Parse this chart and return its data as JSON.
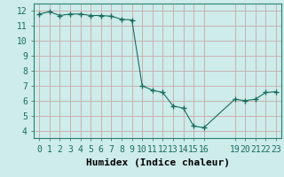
{
  "x": [
    0,
    1,
    2,
    3,
    4,
    5,
    6,
    7,
    8,
    9,
    10,
    11,
    12,
    13,
    14,
    15,
    16,
    19,
    20,
    21,
    22,
    23
  ],
  "y": [
    11.8,
    11.95,
    11.7,
    11.8,
    11.8,
    11.7,
    11.7,
    11.65,
    11.45,
    11.4,
    7.0,
    6.7,
    6.55,
    5.65,
    5.5,
    4.3,
    4.2,
    6.1,
    6.0,
    6.1,
    6.55,
    6.6
  ],
  "title": "",
  "xlabel": "Humidex (Indice chaleur)",
  "ylabel": "",
  "xlim": [
    -0.5,
    23.5
  ],
  "ylim": [
    3.5,
    12.5
  ],
  "xticks": [
    0,
    1,
    2,
    3,
    4,
    5,
    6,
    7,
    8,
    9,
    10,
    11,
    12,
    13,
    14,
    15,
    16,
    19,
    20,
    21,
    22,
    23
  ],
  "yticks": [
    4,
    5,
    6,
    7,
    8,
    9,
    10,
    11,
    12
  ],
  "line_color": "#1a6b5e",
  "marker": "+",
  "marker_size": 4,
  "bg_color": "#cdecea",
  "grid_color_v": "#c8a8a8",
  "grid_color_h": "#c8a8a8",
  "fig_bg": "#cdecea",
  "xlabel_fontsize": 8,
  "tick_fontsize": 7
}
